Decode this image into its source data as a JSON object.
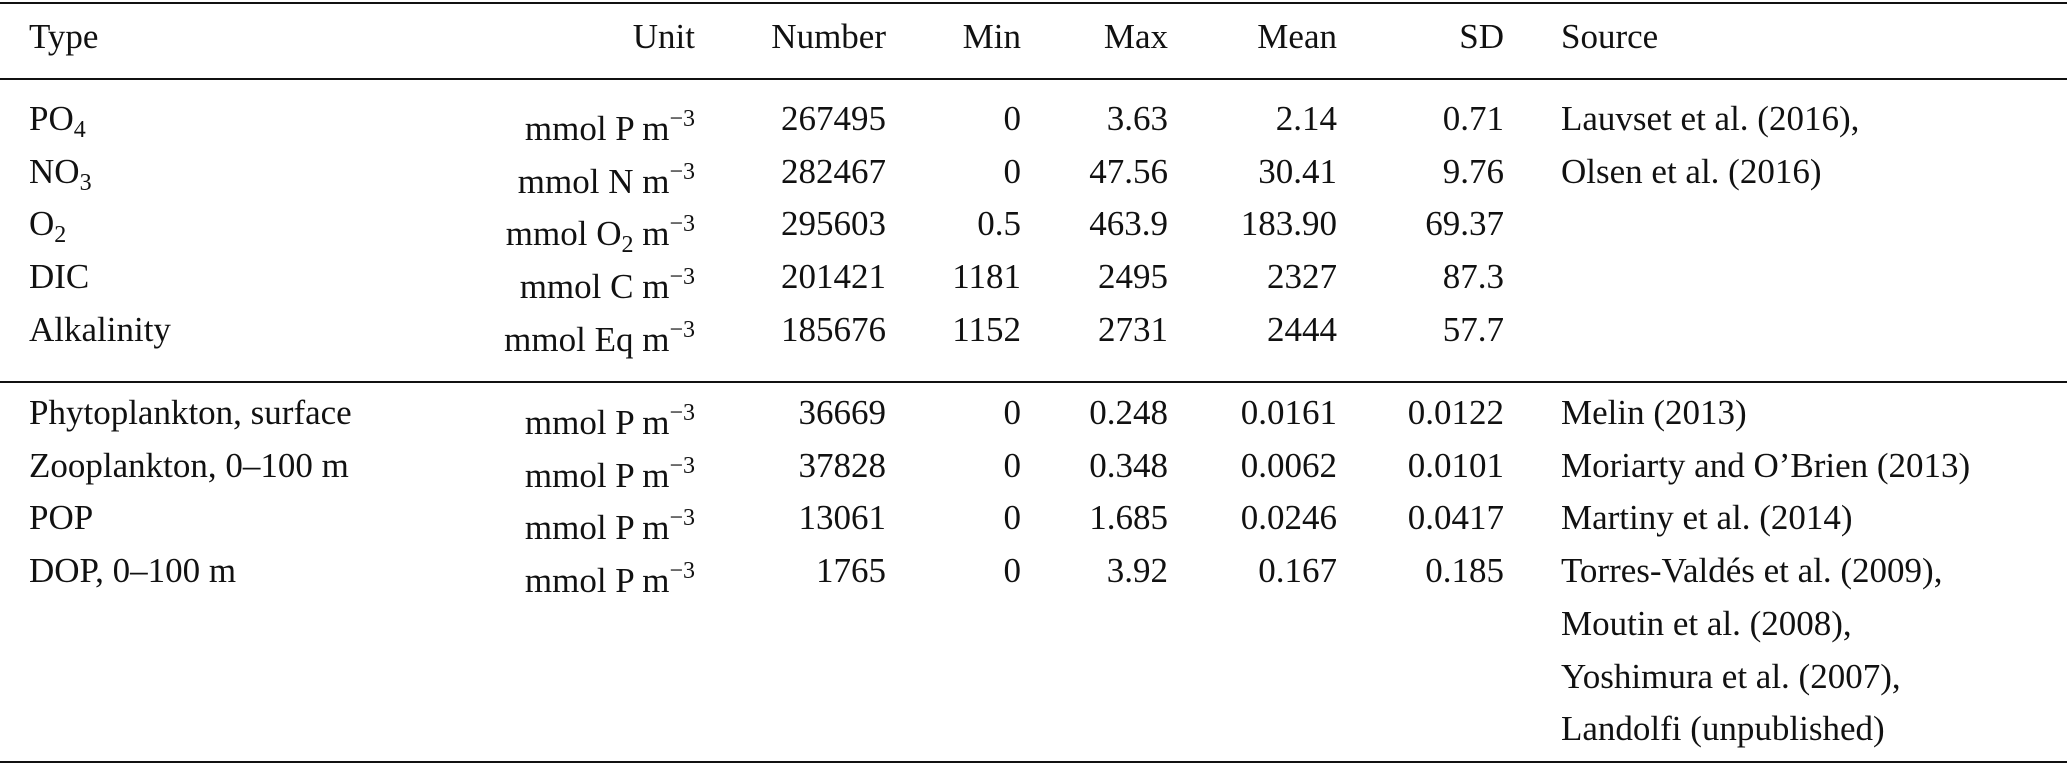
{
  "table": {
    "columns": [
      "Type",
      "Unit",
      "Number",
      "Min",
      "Max",
      "Mean",
      "SD",
      "Source"
    ],
    "groups": [
      [
        {
          "type": [
            {
              "text": "PO"
            },
            {
              "text": "4",
              "pos": "sub"
            }
          ],
          "unit": [
            {
              "text": "mmol P m"
            },
            {
              "text": "−3",
              "pos": "sup"
            }
          ],
          "number": "267495",
          "min": "0",
          "max": "3.63",
          "mean": "2.14",
          "sd": "0.71",
          "source": [
            "Lauvset et al. (2016),"
          ]
        },
        {
          "type": [
            {
              "text": "NO"
            },
            {
              "text": "3",
              "pos": "sub"
            }
          ],
          "unit": [
            {
              "text": "mmol N m"
            },
            {
              "text": "−3",
              "pos": "sup"
            }
          ],
          "number": "282467",
          "min": "0",
          "max": "47.56",
          "mean": "30.41",
          "sd": "9.76",
          "source": [
            "Olsen et al. (2016)"
          ]
        },
        {
          "type": [
            {
              "text": "O"
            },
            {
              "text": "2",
              "pos": "sub"
            }
          ],
          "unit": [
            {
              "text": "mmol O"
            },
            {
              "text": "2",
              "pos": "sub"
            },
            {
              "text": " m"
            },
            {
              "text": "−3",
              "pos": "sup"
            }
          ],
          "number": "295603",
          "min": "0.5",
          "max": "463.9",
          "mean": "183.90",
          "sd": "69.37"
        },
        {
          "type": [
            {
              "text": "DIC"
            }
          ],
          "unit": [
            {
              "text": "mmol C m"
            },
            {
              "text": "−3",
              "pos": "sup"
            }
          ],
          "number": "201421",
          "min": "1181",
          "max": "2495",
          "mean": "2327",
          "sd": "87.3"
        },
        {
          "type": [
            {
              "text": "Alkalinity"
            }
          ],
          "unit": [
            {
              "text": "mmol Eq m"
            },
            {
              "text": "−3",
              "pos": "sup"
            }
          ],
          "number": "185676",
          "min": "1152",
          "max": "2731",
          "mean": "2444",
          "sd": "57.7"
        }
      ],
      [
        {
          "type": [
            {
              "text": "Phytoplankton, surface"
            }
          ],
          "unit": [
            {
              "text": "mmol P m"
            },
            {
              "text": "−3",
              "pos": "sup"
            }
          ],
          "number": "36669",
          "min": "0",
          "max": "0.248",
          "mean": "0.0161",
          "sd": "0.0122",
          "source": [
            "Melin (2013)"
          ]
        },
        {
          "type": [
            {
              "text": "Zooplankton, 0–100 m"
            }
          ],
          "unit": [
            {
              "text": "mmol P m"
            },
            {
              "text": "−3",
              "pos": "sup"
            }
          ],
          "number": "37828",
          "min": "0",
          "max": "0.348",
          "mean": "0.0062",
          "sd": "0.0101",
          "source": [
            "Moriarty and O’Brien (2013)"
          ]
        },
        {
          "type": [
            {
              "text": "POP"
            }
          ],
          "unit": [
            {
              "text": "mmol P m"
            },
            {
              "text": "−3",
              "pos": "sup"
            }
          ],
          "number": "13061",
          "min": "0",
          "max": "1.685",
          "mean": "0.0246",
          "sd": "0.0417",
          "source": [
            "Martiny et al. (2014)"
          ]
        },
        {
          "type": [
            {
              "text": "DOP, 0–100 m"
            }
          ],
          "unit": [
            {
              "text": "mmol P m"
            },
            {
              "text": "−3",
              "pos": "sup"
            }
          ],
          "number": "1765",
          "min": "0",
          "max": "3.92",
          "mean": "0.167",
          "sd": "0.185",
          "source": [
            "Torres-Valdés et al. (2009),",
            "Moutin et al. (2008),",
            "Yoshimura et al. (2007),",
            "Landolfi (unpublished)"
          ]
        }
      ]
    ]
  }
}
